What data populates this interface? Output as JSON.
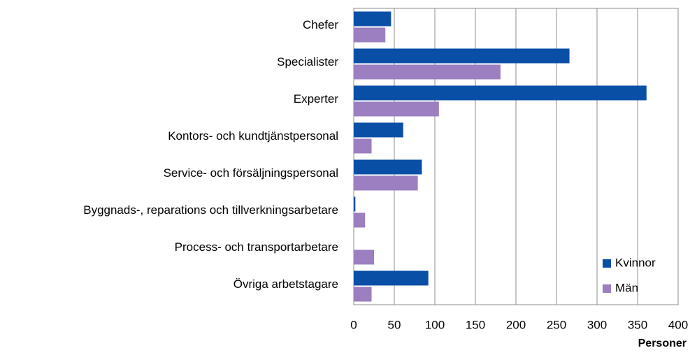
{
  "chart_data": {
    "type": "bar",
    "orientation": "horizontal",
    "categories": [
      "Chefer",
      "Specialister",
      "Experter",
      "Kontors- och kundtjänstpersonal",
      "Service- och försäljningspersonal",
      "Byggnads-, reparations och tillverkningsarbetare",
      "Process- och transportarbetare",
      "Övriga arbetstagare"
    ],
    "series": [
      {
        "name": "Kvinnor",
        "color": "#0a4fa6",
        "values": [
          46,
          266,
          361,
          61,
          84,
          2,
          0,
          92
        ]
      },
      {
        "name": "Män",
        "color": "#9b7fc0",
        "values": [
          39,
          181,
          105,
          22,
          79,
          14,
          25,
          22
        ]
      }
    ],
    "xlabel": "Personer",
    "xlim": [
      0,
      400
    ],
    "xticks": [
      0,
      50,
      100,
      150,
      200,
      250,
      300,
      350,
      400
    ],
    "grid": true,
    "legend": "lower right"
  }
}
